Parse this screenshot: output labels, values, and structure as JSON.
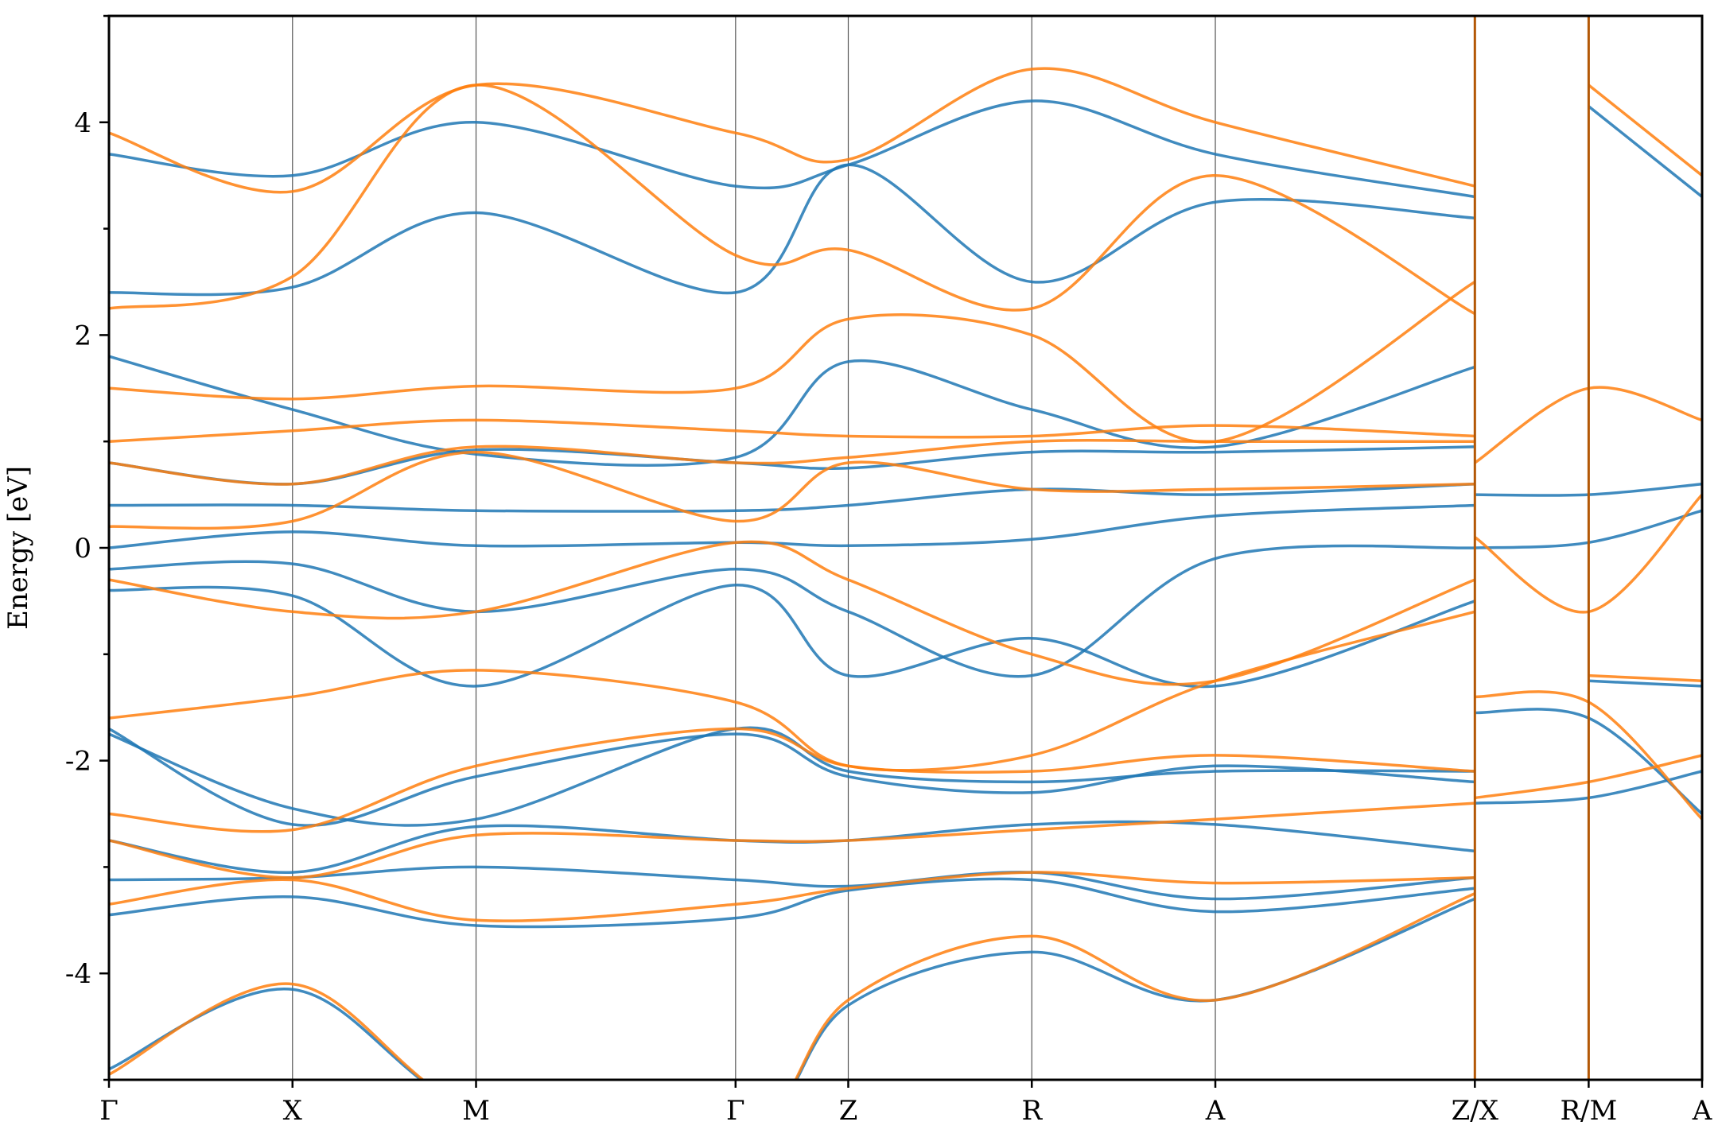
{
  "chart_data": {
    "type": "line",
    "title": "",
    "ylabel": "Energy [eV]",
    "xlabel": "",
    "ylim": [
      -5,
      5
    ],
    "yticks": [
      -4,
      -2,
      0,
      2,
      4
    ],
    "ytick_labels": [
      "-4",
      "-2",
      "0",
      "2",
      "4"
    ],
    "grid": false,
    "kpath": {
      "labels": [
        "Γ",
        "X",
        "M",
        "Γ",
        "Z",
        "R",
        "A",
        "Z/X",
        "R/M",
        "A"
      ],
      "positions": [
        0,
        0.5,
        1.0,
        1.707,
        2.014,
        2.514,
        3.014,
        3.721,
        4.031,
        4.34
      ],
      "path_breaks": [
        3.721,
        4.031
      ]
    },
    "series": [
      {
        "color": "#1f77b4",
        "bands": [
          {
            "k": [
              0,
              0.5,
              1.0,
              1.707,
              2.014,
              2.514,
              3.014,
              3.721
            ],
            "e": [
              -3.45,
              -3.28,
              -3.55,
              -3.48,
              -3.22,
              -3.12,
              -3.42,
              -3.2
            ]
          },
          {
            "k": [
              0,
              0.5,
              1.0,
              1.707,
              2.014,
              2.514,
              3.014,
              3.721
            ],
            "e": [
              -3.12,
              -3.1,
              -3.0,
              -3.12,
              -3.18,
              -3.05,
              -3.3,
              -3.1
            ]
          },
          {
            "k": [
              0,
              0.5,
              1.0,
              1.707,
              2.014,
              2.514,
              3.014,
              3.721
            ],
            "e": [
              -2.75,
              -3.05,
              -2.62,
              -2.75,
              -2.75,
              -2.6,
              -2.6,
              -2.85
            ]
          },
          {
            "k": [
              0,
              0.5,
              1.0,
              1.707,
              2.014,
              2.514,
              3.014,
              3.721
            ],
            "e": [
              -1.75,
              -2.45,
              -2.55,
              -1.7,
              -2.1,
              -2.2,
              -2.1,
              -2.1
            ]
          },
          {
            "k": [
              0,
              0.5,
              1.0,
              1.707,
              2.014,
              2.514,
              3.014,
              3.721
            ],
            "e": [
              -1.7,
              -2.6,
              -2.15,
              -1.75,
              -2.15,
              -2.3,
              -2.05,
              -2.2
            ]
          },
          {
            "k": [
              0,
              0.5,
              1.0,
              1.707,
              2.014,
              2.514,
              3.014,
              3.721
            ],
            "e": [
              -0.4,
              -0.45,
              -1.3,
              -0.35,
              -1.2,
              -0.85,
              -1.3,
              -0.5
            ]
          },
          {
            "k": [
              0,
              0.5,
              1.0,
              1.707,
              2.014,
              2.514,
              3.014,
              3.721
            ],
            "e": [
              -0.2,
              -0.15,
              -0.6,
              -0.2,
              -0.6,
              -1.2,
              -0.1,
              0.0
            ]
          },
          {
            "k": [
              0,
              0.5,
              1.0,
              1.707,
              2.014,
              2.514,
              3.014,
              3.721
            ],
            "e": [
              0.0,
              0.15,
              0.02,
              0.05,
              0.02,
              0.08,
              0.3,
              0.4
            ]
          },
          {
            "k": [
              0,
              0.5,
              1.0,
              1.707,
              2.014,
              2.514,
              3.014,
              3.721
            ],
            "e": [
              0.4,
              0.4,
              0.35,
              0.35,
              0.4,
              0.55,
              0.5,
              0.6
            ]
          },
          {
            "k": [
              0,
              0.5,
              1.0,
              1.707,
              2.014,
              2.514,
              3.014,
              3.721
            ],
            "e": [
              0.8,
              0.6,
              0.92,
              0.8,
              0.75,
              0.9,
              0.9,
              0.95
            ]
          },
          {
            "k": [
              0,
              0.5,
              1.0,
              1.707,
              2.014,
              2.514,
              3.014,
              3.721
            ],
            "e": [
              1.8,
              1.3,
              0.88,
              0.85,
              1.75,
              1.3,
              0.95,
              1.7
            ]
          },
          {
            "k": [
              0,
              0.5,
              1.0,
              1.707,
              2.014,
              2.514,
              3.014,
              3.721
            ],
            "e": [
              2.4,
              2.45,
              3.15,
              2.4,
              3.6,
              2.5,
              3.25,
              3.1
            ]
          },
          {
            "k": [
              0,
              0.5,
              1.0,
              1.707,
              2.014,
              2.514,
              3.014,
              3.721
            ],
            "e": [
              3.7,
              3.5,
              4.0,
              3.4,
              3.6,
              4.2,
              3.7,
              3.3
            ]
          },
          {
            "k": [
              0,
              0.5,
              1.0,
              1.707,
              2.014,
              2.514,
              3.014,
              3.721
            ],
            "e": [
              -4.9,
              -4.15,
              -5.3,
              -5.6,
              -4.3,
              -3.8,
              -4.25,
              -3.3
            ]
          },
          {
            "k": [
              3.721,
              4.031,
              4.34
            ],
            "e": [
              -1.55,
              -1.6,
              -2.5
            ]
          },
          {
            "k": [
              3.721,
              4.031,
              4.34
            ],
            "e": [
              -2.4,
              -2.35,
              -2.1
            ]
          },
          {
            "k": [
              3.721,
              4.031,
              4.34
            ],
            "e": [
              0.0,
              0.05,
              0.35
            ]
          },
          {
            "k": [
              3.721,
              4.031,
              4.34
            ],
            "e": [
              0.5,
              0.5,
              0.6
            ]
          },
          {
            "k": [
              4.031,
              4.34
            ],
            "e": [
              -1.25,
              -1.3
            ]
          },
          {
            "k": [
              4.031,
              4.34
            ],
            "e": [
              4.15,
              3.3
            ]
          }
        ]
      },
      {
        "color": "#ff7f0e",
        "bands": [
          {
            "k": [
              0,
              0.5,
              1.0,
              1.707,
              2.014,
              2.514,
              3.014,
              3.721
            ],
            "e": [
              -3.35,
              -3.12,
              -3.5,
              -3.35,
              -3.2,
              -3.05,
              -3.15,
              -3.1
            ]
          },
          {
            "k": [
              0,
              0.5,
              1.0,
              1.707,
              2.014,
              2.514,
              3.014,
              3.721
            ],
            "e": [
              -2.75,
              -3.1,
              -2.7,
              -2.75,
              -2.75,
              -2.65,
              -2.55,
              -2.4
            ]
          },
          {
            "k": [
              0,
              0.5,
              1.0,
              1.707,
              2.014,
              2.514,
              3.014,
              3.721
            ],
            "e": [
              -2.5,
              -2.65,
              -2.05,
              -1.7,
              -2.05,
              -2.1,
              -1.95,
              -2.1
            ]
          },
          {
            "k": [
              0,
              0.5,
              1.0,
              1.707,
              2.014,
              2.514,
              3.014,
              3.721
            ],
            "e": [
              -1.6,
              -1.4,
              -1.15,
              -1.45,
              -2.05,
              -1.95,
              -1.25,
              -0.6
            ]
          },
          {
            "k": [
              0,
              0.5,
              1.0,
              1.707,
              2.014,
              2.514,
              3.014,
              3.721
            ],
            "e": [
              -0.3,
              -0.6,
              -0.6,
              0.05,
              -0.3,
              -1.0,
              -1.25,
              -0.3
            ]
          },
          {
            "k": [
              0,
              0.5,
              1.0,
              1.707,
              2.014,
              2.514,
              3.014,
              3.721
            ],
            "e": [
              0.2,
              0.25,
              0.9,
              0.25,
              0.8,
              0.55,
              0.55,
              0.6
            ]
          },
          {
            "k": [
              0,
              0.5,
              1.0,
              1.707,
              2.014,
              2.514,
              3.014,
              3.721
            ],
            "e": [
              0.8,
              0.6,
              0.95,
              0.8,
              0.85,
              1.0,
              1.0,
              1.0
            ]
          },
          {
            "k": [
              0,
              0.5,
              1.0,
              1.707,
              2.014,
              2.514,
              3.014,
              3.721
            ],
            "e": [
              1.0,
              1.1,
              1.2,
              1.1,
              1.05,
              1.05,
              1.15,
              1.05
            ]
          },
          {
            "k": [
              0,
              0.5,
              1.0,
              1.707,
              2.014,
              2.514,
              3.014,
              3.721
            ],
            "e": [
              1.5,
              1.4,
              1.52,
              1.5,
              2.15,
              2.0,
              1.0,
              2.5
            ]
          },
          {
            "k": [
              0,
              0.5,
              1.0,
              1.707,
              2.014,
              2.514,
              3.014,
              3.721
            ],
            "e": [
              2.25,
              2.55,
              4.35,
              2.75,
              2.8,
              2.25,
              3.5,
              2.2
            ]
          },
          {
            "k": [
              0,
              0.5,
              1.0,
              1.707,
              2.014,
              2.514,
              3.014,
              3.721
            ],
            "e": [
              3.9,
              3.35,
              4.35,
              3.9,
              3.65,
              4.5,
              4.0,
              3.4
            ]
          },
          {
            "k": [
              0,
              0.5,
              1.0,
              1.707,
              2.014,
              2.514,
              3.014,
              3.721
            ],
            "e": [
              -4.95,
              -4.1,
              -5.3,
              -5.6,
              -4.25,
              -3.65,
              -4.25,
              -3.25
            ]
          },
          {
            "k": [
              3.721,
              4.031,
              4.34
            ],
            "e": [
              -1.4,
              -1.45,
              -2.55
            ]
          },
          {
            "k": [
              3.721,
              4.031,
              4.34
            ],
            "e": [
              -2.35,
              -2.2,
              -1.95
            ]
          },
          {
            "k": [
              3.721,
              4.031,
              4.34
            ],
            "e": [
              0.1,
              -0.6,
              0.5
            ]
          },
          {
            "k": [
              3.721,
              4.031,
              4.34
            ],
            "e": [
              0.8,
              1.5,
              1.2
            ]
          },
          {
            "k": [
              4.031,
              4.34
            ],
            "e": [
              -1.2,
              -1.25
            ]
          },
          {
            "k": [
              4.031,
              4.34
            ],
            "e": [
              4.35,
              3.5
            ]
          }
        ]
      }
    ]
  }
}
